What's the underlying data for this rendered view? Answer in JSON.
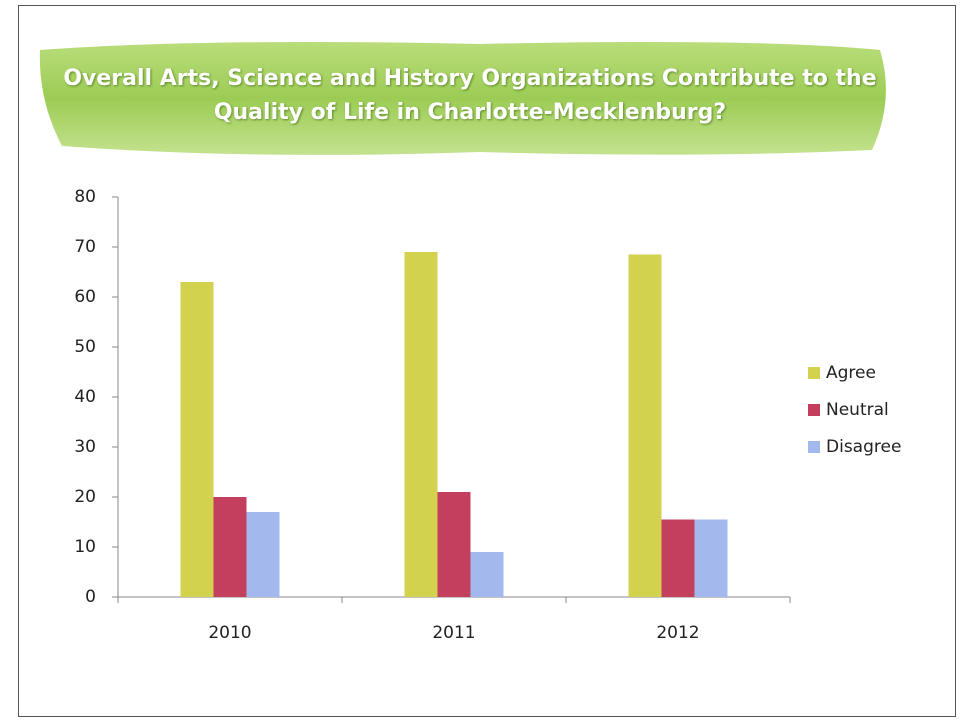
{
  "chart_data": {
    "type": "bar",
    "title": "Overall Arts, Science and History Organizations Contribute to the Quality of Life in Charlotte-Mecklenburg?",
    "categories": [
      "2010",
      "2011",
      "2012"
    ],
    "series": [
      {
        "name": "Agree",
        "color": "#d2d24e",
        "values": [
          63,
          69,
          68.5
        ]
      },
      {
        "name": "Neutral",
        "color": "#c43f5e",
        "values": [
          20,
          21,
          15.5
        ]
      },
      {
        "name": "Disagree",
        "color": "#a3b9ee",
        "values": [
          17,
          9,
          15.5
        ]
      }
    ],
    "ylim": [
      0,
      80
    ],
    "yticks": [
      0,
      10,
      20,
      30,
      40,
      50,
      60,
      70,
      80
    ],
    "grid": false,
    "legend": "right"
  }
}
